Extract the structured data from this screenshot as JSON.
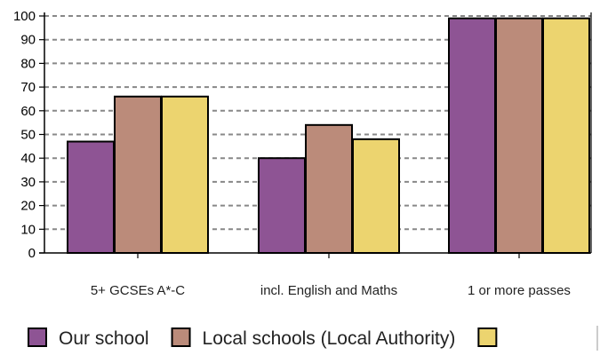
{
  "chart_data": {
    "type": "bar",
    "categories": [
      "5+ GCSEs A*-C",
      "incl. English and Maths",
      "1 or more passes"
    ],
    "series": [
      {
        "name": "Our school",
        "values": [
          47,
          40,
          99
        ],
        "color": "#8e5494"
      },
      {
        "name": "Local schools (Local Authority)",
        "values": [
          66,
          54,
          99
        ],
        "color": "#bb8b7a"
      },
      {
        "name": "",
        "values": [
          66,
          48,
          99
        ],
        "color": "#ecd46f"
      }
    ],
    "yticks": [
      0,
      10,
      20,
      30,
      40,
      50,
      60,
      70,
      80,
      90,
      100
    ],
    "ylim": [
      0,
      100
    ],
    "grid": true,
    "legend_position": "bottom",
    "title": "",
    "xlabel": "",
    "ylabel": ""
  }
}
